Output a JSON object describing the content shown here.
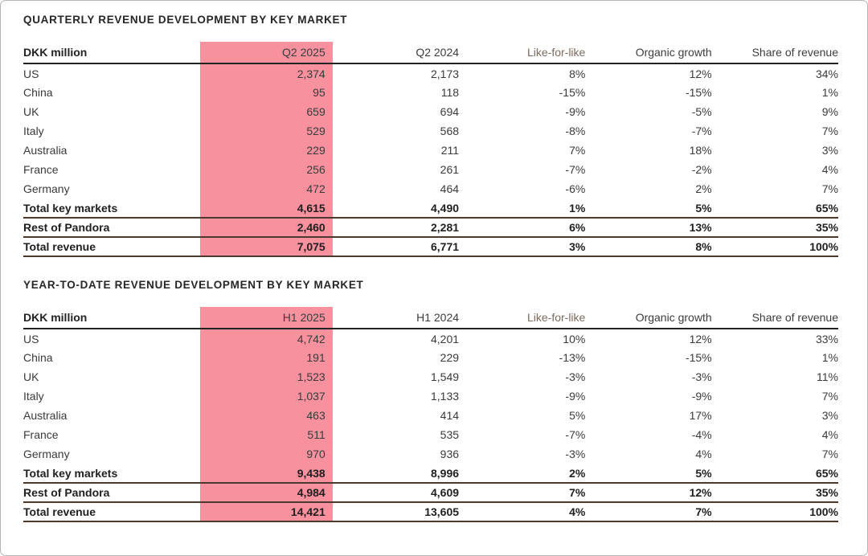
{
  "colors": {
    "highlight_pink": "#F7919E",
    "muted_header": "#7d6a5e",
    "header_rule": "#232323",
    "total_rule": "#4a3a30"
  },
  "tables": [
    {
      "title": "QUARTERLY REVENUE DEVELOPMENT BY KEY MARKET",
      "unit_header": "DKK million",
      "highlighted_column": "Q2 2025",
      "columns": [
        "DKK million",
        "Q2 2025",
        "Q2 2024",
        "Like-for-like",
        "Organic growth",
        "Share of revenue"
      ],
      "rows": [
        {
          "label": "US",
          "values": [
            "2,374",
            "2,173",
            "8%",
            "12%",
            "34%"
          ],
          "bold": false,
          "rule_below": false
        },
        {
          "label": "China",
          "values": [
            "95",
            "118",
            "-15%",
            "-15%",
            "1%"
          ],
          "bold": false,
          "rule_below": false
        },
        {
          "label": "UK",
          "values": [
            "659",
            "694",
            "-9%",
            "-5%",
            "9%"
          ],
          "bold": false,
          "rule_below": false
        },
        {
          "label": "Italy",
          "values": [
            "529",
            "568",
            "-8%",
            "-7%",
            "7%"
          ],
          "bold": false,
          "rule_below": false
        },
        {
          "label": "Australia",
          "values": [
            "229",
            "211",
            "7%",
            "18%",
            "3%"
          ],
          "bold": false,
          "rule_below": false
        },
        {
          "label": "France",
          "values": [
            "256",
            "261",
            "-7%",
            "-2%",
            "4%"
          ],
          "bold": false,
          "rule_below": false
        },
        {
          "label": "Germany",
          "values": [
            "472",
            "464",
            "-6%",
            "2%",
            "7%"
          ],
          "bold": false,
          "rule_below": false
        },
        {
          "label": "Total key markets",
          "values": [
            "4,615",
            "4,490",
            "1%",
            "5%",
            "65%"
          ],
          "bold": true,
          "rule_below": true
        },
        {
          "label": "Rest of Pandora",
          "values": [
            "2,460",
            "2,281",
            "6%",
            "13%",
            "35%"
          ],
          "bold": true,
          "rule_below": true
        },
        {
          "label": "Total revenue",
          "values": [
            "7,075",
            "6,771",
            "3%",
            "8%",
            "100%"
          ],
          "bold": true,
          "rule_below": true
        }
      ]
    },
    {
      "title": "YEAR-TO-DATE REVENUE DEVELOPMENT BY KEY MARKET",
      "unit_header": "DKK million",
      "highlighted_column": "H1 2025",
      "columns": [
        "DKK million",
        "H1 2025",
        "H1 2024",
        "Like-for-like",
        "Organic growth",
        "Share of revenue"
      ],
      "rows": [
        {
          "label": "US",
          "values": [
            "4,742",
            "4,201",
            "10%",
            "12%",
            "33%"
          ],
          "bold": false,
          "rule_below": false
        },
        {
          "label": "China",
          "values": [
            "191",
            "229",
            "-13%",
            "-15%",
            "1%"
          ],
          "bold": false,
          "rule_below": false
        },
        {
          "label": "UK",
          "values": [
            "1,523",
            "1,549",
            "-3%",
            "-3%",
            "11%"
          ],
          "bold": false,
          "rule_below": false
        },
        {
          "label": "Italy",
          "values": [
            "1,037",
            "1,133",
            "-9%",
            "-9%",
            "7%"
          ],
          "bold": false,
          "rule_below": false
        },
        {
          "label": "Australia",
          "values": [
            "463",
            "414",
            "5%",
            "17%",
            "3%"
          ],
          "bold": false,
          "rule_below": false
        },
        {
          "label": "France",
          "values": [
            "511",
            "535",
            "-7%",
            "-4%",
            "4%"
          ],
          "bold": false,
          "rule_below": false
        },
        {
          "label": "Germany",
          "values": [
            "970",
            "936",
            "-3%",
            "4%",
            "7%"
          ],
          "bold": false,
          "rule_below": false
        },
        {
          "label": "Total key markets",
          "values": [
            "9,438",
            "8,996",
            "2%",
            "5%",
            "65%"
          ],
          "bold": true,
          "rule_below": true
        },
        {
          "label": "Rest of Pandora",
          "values": [
            "4,984",
            "4,609",
            "7%",
            "12%",
            "35%"
          ],
          "bold": true,
          "rule_below": true
        },
        {
          "label": "Total revenue",
          "values": [
            "14,421",
            "13,605",
            "4%",
            "7%",
            "100%"
          ],
          "bold": true,
          "rule_below": true
        }
      ]
    }
  ]
}
